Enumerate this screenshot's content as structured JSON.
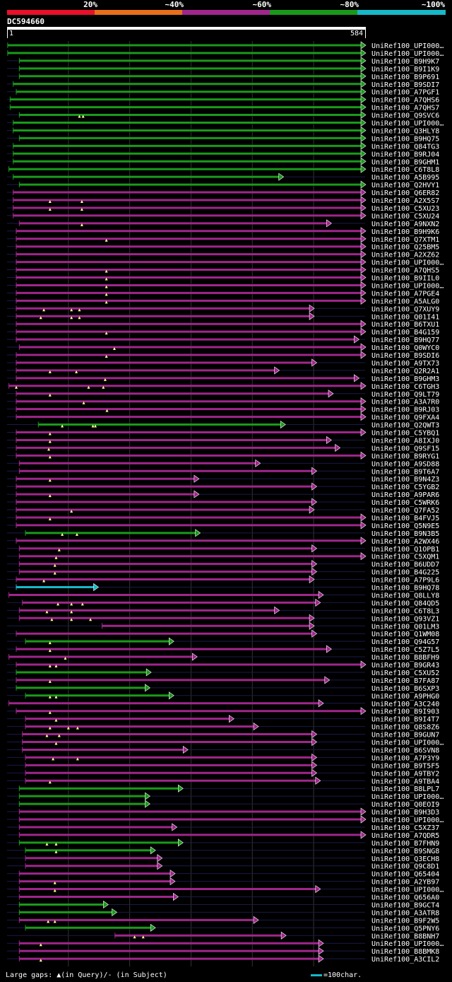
{
  "legend": {
    "labels": [
      "20%",
      "~40%",
      "~60%",
      "~80%",
      "~100%"
    ],
    "colors": [
      "#e8102a",
      "#e8701a",
      "#a0268c",
      "#1a9a1a",
      "#17b8c8"
    ]
  },
  "query": {
    "name": "DC594660",
    "start": "1",
    "end": "584",
    "length": 584
  },
  "footer": {
    "gaps_text": "Large gaps: ▲(in Query)/- (in Subject)",
    "scale_text": "=100char."
  },
  "hits": [
    {
      "name": "UniRef100_UPI000…",
      "color": "#1a9a1a",
      "start": 1,
      "end": 584,
      "ins": []
    },
    {
      "name": "UniRef100_UPI000…",
      "color": "#1a9a1a",
      "start": 1,
      "end": 584,
      "ins": []
    },
    {
      "name": "UniRef100_B9H9K7",
      "color": "#1a9a1a",
      "start": 20,
      "end": 584,
      "ins": []
    },
    {
      "name": "UniRef100_B9I1K9",
      "color": "#1a9a1a",
      "start": 20,
      "end": 584,
      "ins": []
    },
    {
      "name": "UniRef100_B9P691",
      "color": "#1a9a1a",
      "start": 20,
      "end": 584,
      "ins": []
    },
    {
      "name": "UniRef100_B9SDI7",
      "color": "#1a9a1a",
      "start": 10,
      "end": 584,
      "ins": []
    },
    {
      "name": "UniRef100_A7PGF1",
      "color": "#1a9a1a",
      "start": 15,
      "end": 584,
      "ins": []
    },
    {
      "name": "UniRef100_A7QHS6",
      "color": "#1a9a1a",
      "start": 5,
      "end": 584,
      "ins": []
    },
    {
      "name": "UniRef100_A7QHS7",
      "color": "#1a9a1a",
      "start": 5,
      "end": 584,
      "ins": []
    },
    {
      "name": "UniRef100_Q9SVC6",
      "color": "#1a9a1a",
      "start": 20,
      "end": 584,
      "ins": [
        118,
        124
      ]
    },
    {
      "name": "UniRef100_UPI000…",
      "color": "#1a9a1a",
      "start": 10,
      "end": 584,
      "ins": []
    },
    {
      "name": "UniRef100_Q3HLY8",
      "color": "#1a9a1a",
      "start": 10,
      "end": 584,
      "ins": []
    },
    {
      "name": "UniRef100_B9HQ75",
      "color": "#1a9a1a",
      "start": 20,
      "end": 584,
      "ins": []
    },
    {
      "name": "UniRef100_Q84TG3",
      "color": "#1a9a1a",
      "start": 10,
      "end": 584,
      "ins": []
    },
    {
      "name": "UniRef100_B9RJ04",
      "color": "#1a9a1a",
      "start": 10,
      "end": 584,
      "ins": []
    },
    {
      "name": "UniRef100_B9GHM1",
      "color": "#1a9a1a",
      "start": 10,
      "end": 584,
      "ins": []
    },
    {
      "name": "UniRef100_C6T8L8",
      "color": "#1a9a1a",
      "start": 3,
      "end": 584,
      "ins": []
    },
    {
      "name": "UniRef100_A5B995",
      "color": "#1a9a1a",
      "start": 10,
      "end": 450,
      "ins": []
    },
    {
      "name": "UniRef100_Q2HVY1",
      "color": "#1a9a1a",
      "start": 20,
      "end": 584,
      "ins": []
    },
    {
      "name": "UniRef100_Q6ER82",
      "color": "#a0268c",
      "start": 10,
      "end": 584,
      "ins": []
    },
    {
      "name": "UniRef100_A2X5S7",
      "color": "#a0268c",
      "start": 10,
      "end": 584,
      "ins": [
        70,
        122
      ]
    },
    {
      "name": "UniRef100_C5XU23",
      "color": "#a0268c",
      "start": 10,
      "end": 584,
      "ins": [
        70,
        122
      ]
    },
    {
      "name": "UniRef100_C5XU24",
      "color": "#a0268c",
      "start": 10,
      "end": 584,
      "ins": []
    },
    {
      "name": "UniRef100_A9NXN2",
      "color": "#a0268c",
      "start": 20,
      "end": 528,
      "ins": [
        122
      ]
    },
    {
      "name": "UniRef100_B9H9K6",
      "color": "#a0268c",
      "start": 15,
      "end": 584,
      "ins": []
    },
    {
      "name": "UniRef100_Q7XTM1",
      "color": "#a0268c",
      "start": 15,
      "end": 584,
      "ins": [
        162
      ]
    },
    {
      "name": "UniRef100_Q25BM5",
      "color": "#a0268c",
      "start": 15,
      "end": 584,
      "ins": []
    },
    {
      "name": "UniRef100_A2XZ62",
      "color": "#a0268c",
      "start": 15,
      "end": 584,
      "ins": []
    },
    {
      "name": "UniRef100_UPI000…",
      "color": "#a0268c",
      "start": 15,
      "end": 584,
      "ins": []
    },
    {
      "name": "UniRef100_A7QHS5",
      "color": "#a0268c",
      "start": 15,
      "end": 584,
      "ins": [
        162
      ]
    },
    {
      "name": "UniRef100_B9IIL0",
      "color": "#a0268c",
      "start": 15,
      "end": 584,
      "ins": [
        162
      ]
    },
    {
      "name": "UniRef100_UPI000…",
      "color": "#a0268c",
      "start": 15,
      "end": 584,
      "ins": [
        162
      ]
    },
    {
      "name": "UniRef100_A7PGE4",
      "color": "#a0268c",
      "start": 15,
      "end": 584,
      "ins": [
        162
      ]
    },
    {
      "name": "UniRef100_A5ALG0",
      "color": "#a0268c",
      "start": 15,
      "end": 584,
      "ins": [
        162
      ]
    },
    {
      "name": "UniRef100_Q7XUY9",
      "color": "#a0268c",
      "start": 15,
      "end": 500,
      "ins": [
        60,
        105,
        118
      ]
    },
    {
      "name": "UniRef100_Q01I41",
      "color": "#a0268c",
      "start": 15,
      "end": 500,
      "ins": [
        55,
        105,
        118
      ]
    },
    {
      "name": "UniRef100_B6TXU1",
      "color": "#a0268c",
      "start": 15,
      "end": 584,
      "ins": []
    },
    {
      "name": "UniRef100_B4G159",
      "color": "#a0268c",
      "start": 15,
      "end": 584,
      "ins": [
        162
      ]
    },
    {
      "name": "UniRef100_B9HQ77",
      "color": "#a0268c",
      "start": 15,
      "end": 573,
      "ins": []
    },
    {
      "name": "UniRef100_Q0WYC0",
      "color": "#a0268c",
      "start": 20,
      "end": 584,
      "ins": [
        175
      ]
    },
    {
      "name": "UniRef100_B9SDI6",
      "color": "#a0268c",
      "start": 15,
      "end": 584,
      "ins": [
        162
      ]
    },
    {
      "name": "UniRef100_A9TX73",
      "color": "#a0268c",
      "start": 15,
      "end": 504,
      "ins": []
    },
    {
      "name": "UniRef100_Q2R2A1",
      "color": "#a0268c",
      "start": 15,
      "end": 443,
      "ins": [
        70,
        113
      ]
    },
    {
      "name": "UniRef100_B9GHM3",
      "color": "#a0268c",
      "start": 15,
      "end": 573,
      "ins": [
        160
      ]
    },
    {
      "name": "UniRef100_C6TGH3",
      "color": "#a0268c",
      "start": 3,
      "end": 584,
      "ins": [
        15,
        133,
        157
      ]
    },
    {
      "name": "UniRef100_Q9LT79",
      "color": "#a0268c",
      "start": 15,
      "end": 531,
      "ins": [
        70
      ]
    },
    {
      "name": "UniRef100_A3A7R0",
      "color": "#a0268c",
      "start": 15,
      "end": 584,
      "ins": [
        125
      ]
    },
    {
      "name": "UniRef100_B9RJ03",
      "color": "#a0268c",
      "start": 15,
      "end": 584,
      "ins": [
        163
      ]
    },
    {
      "name": "UniRef100_Q9FXA4",
      "color": "#a0268c",
      "start": 15,
      "end": 584,
      "ins": []
    },
    {
      "name": "UniRef100_Q2QWT3",
      "color": "#1a9a1a",
      "start": 51,
      "end": 453,
      "ins": [
        90,
        140,
        144
      ]
    },
    {
      "name": "UniRef100_C5YBQ1",
      "color": "#a0268c",
      "start": 15,
      "end": 584,
      "ins": [
        70
      ]
    },
    {
      "name": "UniRef100_A8IXJ0",
      "color": "#a0268c",
      "start": 15,
      "end": 528,
      "ins": [
        70
      ]
    },
    {
      "name": "UniRef100_Q9SF15",
      "color": "#a0268c",
      "start": 15,
      "end": 542,
      "ins": [
        68
      ]
    },
    {
      "name": "UniRef100_B9RYG1",
      "color": "#a0268c",
      "start": 15,
      "end": 584,
      "ins": [
        70
      ]
    },
    {
      "name": "UniRef100_A9SD88",
      "color": "#a0268c",
      "start": 20,
      "end": 412,
      "ins": []
    },
    {
      "name": "UniRef100_B9T6A7",
      "color": "#a0268c",
      "start": 20,
      "end": 504,
      "ins": []
    },
    {
      "name": "UniRef100_B9N4Z3",
      "color": "#a0268c",
      "start": 15,
      "end": 312,
      "ins": [
        70
      ]
    },
    {
      "name": "UniRef100_C5YGB2",
      "color": "#a0268c",
      "start": 15,
      "end": 504,
      "ins": []
    },
    {
      "name": "UniRef100_A9PAR6",
      "color": "#a0268c",
      "start": 15,
      "end": 312,
      "ins": [
        70
      ]
    },
    {
      "name": "UniRef100_C5WRK6",
      "color": "#a0268c",
      "start": 15,
      "end": 504,
      "ins": []
    },
    {
      "name": "UniRef100_Q7FA52",
      "color": "#a0268c",
      "start": 15,
      "end": 500,
      "ins": [
        105
      ]
    },
    {
      "name": "UniRef100_B4FVJ5",
      "color": "#a0268c",
      "start": 15,
      "end": 584,
      "ins": [
        70
      ]
    },
    {
      "name": "UniRef100_Q5N9E5",
      "color": "#a0268c",
      "start": 15,
      "end": 584,
      "ins": []
    },
    {
      "name": "UniRef100_B9N3B5",
      "color": "#1a9a1a",
      "start": 30,
      "end": 314,
      "ins": [
        90,
        114
      ]
    },
    {
      "name": "UniRef100_A2WX46",
      "color": "#a0268c",
      "start": 15,
      "end": 584,
      "ins": []
    },
    {
      "name": "UniRef100_Q1OPB1",
      "color": "#a0268c",
      "start": 20,
      "end": 504,
      "ins": [
        85
      ]
    },
    {
      "name": "UniRef100_C5XQM1",
      "color": "#a0268c",
      "start": 20,
      "end": 584,
      "ins": [
        80
      ]
    },
    {
      "name": "UniRef100_B6UDD7",
      "color": "#a0268c",
      "start": 20,
      "end": 504,
      "ins": [
        78
      ]
    },
    {
      "name": "UniRef100_B4G225",
      "color": "#a0268c",
      "start": 20,
      "end": 504,
      "ins": [
        78
      ]
    },
    {
      "name": "UniRef100_A7P9L6",
      "color": "#a0268c",
      "start": 15,
      "end": 500,
      "ins": [
        60
      ]
    },
    {
      "name": "UniRef100_B9HQ78",
      "color": "#17b8c8",
      "start": 15,
      "end": 148,
      "ins": []
    },
    {
      "name": "UniRef100_Q8LLY8",
      "color": "#a0268c",
      "start": 3,
      "end": 515,
      "ins": []
    },
    {
      "name": "UniRef100_Q84QD5",
      "color": "#a0268c",
      "start": 25,
      "end": 510,
      "ins": [
        83,
        105,
        123
      ]
    },
    {
      "name": "UniRef100_C6T8L3",
      "color": "#a0268c",
      "start": 20,
      "end": 443,
      "ins": [
        65,
        105
      ]
    },
    {
      "name": "UniRef100_Q93VZ1",
      "color": "#a0268c",
      "start": 20,
      "end": 500,
      "ins": [
        73,
        105,
        136
      ]
    },
    {
      "name": "UniRef100_Q01LM3",
      "color": "#a0268c",
      "start": 155,
      "end": 500,
      "ins": []
    },
    {
      "name": "UniRef100_Q1WM08",
      "color": "#a0268c",
      "start": 15,
      "end": 504,
      "ins": []
    },
    {
      "name": "UniRef100_Q94G57",
      "color": "#1a9a1a",
      "start": 30,
      "end": 271,
      "ins": [
        70
      ]
    },
    {
      "name": "UniRef100_C5Z7L5",
      "color": "#a0268c",
      "start": 15,
      "end": 528,
      "ins": [
        70
      ]
    },
    {
      "name": "UniRef100_B8BFH9",
      "color": "#a0268c",
      "start": 3,
      "end": 309,
      "ins": [
        95
      ]
    },
    {
      "name": "UniRef100_B9GR43",
      "color": "#a0268c",
      "start": 15,
      "end": 584,
      "ins": [
        70,
        80
      ]
    },
    {
      "name": "UniRef100_C5XU52",
      "color": "#1a9a1a",
      "start": 15,
      "end": 234,
      "ins": []
    },
    {
      "name": "UniRef100_B7FA87",
      "color": "#a0268c",
      "start": 15,
      "end": 525,
      "ins": [
        70
      ]
    },
    {
      "name": "UniRef100_B6SXP3",
      "color": "#1a9a1a",
      "start": 15,
      "end": 232,
      "ins": []
    },
    {
      "name": "UniRef100_A9PHG0",
      "color": "#1a9a1a",
      "start": 30,
      "end": 271,
      "ins": [
        70,
        80
      ]
    },
    {
      "name": "UniRef100_A3C240",
      "color": "#a0268c",
      "start": 3,
      "end": 515,
      "ins": []
    },
    {
      "name": "UniRef100_B9I903",
      "color": "#a0268c",
      "start": 15,
      "end": 584,
      "ins": [
        70
      ]
    },
    {
      "name": "UniRef100_B9I4T7",
      "color": "#a0268c",
      "start": 30,
      "end": 369,
      "ins": [
        80
      ]
    },
    {
      "name": "UniRef100_Q8S8Z6",
      "color": "#a0268c",
      "start": 30,
      "end": 409,
      "ins": [
        70,
        100,
        115
      ]
    },
    {
      "name": "UniRef100_B9GUN7",
      "color": "#a0268c",
      "start": 25,
      "end": 504,
      "ins": [
        65,
        85
      ]
    },
    {
      "name": "UniRef100_UPI000…",
      "color": "#a0268c",
      "start": 25,
      "end": 504,
      "ins": [
        80
      ]
    },
    {
      "name": "UniRef100_B6SVN8",
      "color": "#a0268c",
      "start": 25,
      "end": 294,
      "ins": []
    },
    {
      "name": "UniRef100_A7P3Y9",
      "color": "#a0268c",
      "start": 30,
      "end": 504,
      "ins": [
        75,
        115
      ]
    },
    {
      "name": "UniRef100_B9T5F5",
      "color": "#a0268c",
      "start": 30,
      "end": 504,
      "ins": []
    },
    {
      "name": "UniRef100_A9TBY2",
      "color": "#a0268c",
      "start": 30,
      "end": 504,
      "ins": []
    },
    {
      "name": "UniRef100_A9TBA4",
      "color": "#a0268c",
      "start": 30,
      "end": 510,
      "ins": [
        70
      ]
    },
    {
      "name": "UniRef100_B8LPL7",
      "color": "#1a9a1a",
      "start": 20,
      "end": 286,
      "ins": []
    },
    {
      "name": "UniRef100_UPI000…",
      "color": "#1a9a1a",
      "start": 20,
      "end": 232,
      "ins": []
    },
    {
      "name": "UniRef100_Q0EOI9",
      "color": "#1a9a1a",
      "start": 20,
      "end": 232,
      "ins": []
    },
    {
      "name": "UniRef100_B9H3D3",
      "color": "#a0268c",
      "start": 20,
      "end": 584,
      "ins": []
    },
    {
      "name": "UniRef100_UPI000…",
      "color": "#a0268c",
      "start": 20,
      "end": 584,
      "ins": []
    },
    {
      "name": "UniRef100_C5XZ37",
      "color": "#a0268c",
      "start": 20,
      "end": 276,
      "ins": []
    },
    {
      "name": "UniRef100_A7QDR5",
      "color": "#a0268c",
      "start": 20,
      "end": 584,
      "ins": []
    },
    {
      "name": "UniRef100_B7FHN9",
      "color": "#1a9a1a",
      "start": 20,
      "end": 286,
      "ins": [
        65,
        80
      ]
    },
    {
      "name": "UniRef100_B9SNG8",
      "color": "#1a9a1a",
      "start": 30,
      "end": 241,
      "ins": [
        80
      ]
    },
    {
      "name": "UniRef100_Q3ECH8",
      "color": "#a0268c",
      "start": 30,
      "end": 252,
      "ins": []
    },
    {
      "name": "UniRef100_Q9C8D1",
      "color": "#a0268c",
      "start": 30,
      "end": 252,
      "ins": []
    },
    {
      "name": "UniRef100_Q65404",
      "color": "#a0268c",
      "start": 20,
      "end": 273,
      "ins": []
    },
    {
      "name": "UniRef100_A2YB97",
      "color": "#a0268c",
      "start": 20,
      "end": 273,
      "ins": [
        78
      ]
    },
    {
      "name": "UniRef100_UPI000…",
      "color": "#a0268c",
      "start": 20,
      "end": 510,
      "ins": [
        78
      ]
    },
    {
      "name": "UniRef100_Q656A0",
      "color": "#a0268c",
      "start": 20,
      "end": 278,
      "ins": []
    },
    {
      "name": "UniRef100_B9GCT4",
      "color": "#1a9a1a",
      "start": 20,
      "end": 164,
      "ins": []
    },
    {
      "name": "UniRef100_A3ATR8",
      "color": "#1a9a1a",
      "start": 20,
      "end": 178,
      "ins": []
    },
    {
      "name": "UniRef100_B9F2W5",
      "color": "#a0268c",
      "start": 20,
      "end": 409,
      "ins": [
        67,
        78
      ]
    },
    {
      "name": "UniRef100_Q5PNY6",
      "color": "#1a9a1a",
      "start": 30,
      "end": 241,
      "ins": []
    },
    {
      "name": "UniRef100_B8BNH7",
      "color": "#a0268c",
      "start": 176,
      "end": 454,
      "ins": [
        208,
        222
      ]
    },
    {
      "name": "UniRef100_UPI000…",
      "color": "#a0268c",
      "start": 20,
      "end": 515,
      "ins": [
        55
      ]
    },
    {
      "name": "UniRef100_B8BMK8",
      "color": "#a0268c",
      "start": 20,
      "end": 515,
      "ins": []
    },
    {
      "name": "UniRef100_A3CIL2",
      "color": "#a0268c",
      "start": 20,
      "end": 515,
      "ins": [
        55
      ]
    }
  ]
}
